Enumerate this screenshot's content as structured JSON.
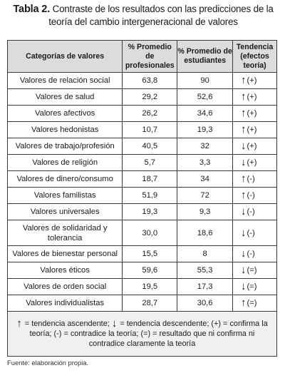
{
  "caption": {
    "label": "Tabla 2.",
    "text": "Contraste de los resultados con las predicciones de la teoría del cambio intergeneracional de valores"
  },
  "table": {
    "headers": [
      "Categorías de valores",
      "% Promedio de profesionales",
      "% Promedio de estudiantes",
      "Tendencia (efectos teoría)"
    ],
    "rows": [
      {
        "category": "Valores de relación social",
        "prof": "63,8",
        "est": "90",
        "arrow": "↑",
        "effect": "(+)"
      },
      {
        "category": "Valores de salud",
        "prof": "29,2",
        "est": "52,6",
        "arrow": "↑",
        "effect": "(+)"
      },
      {
        "category": "Valores afectivos",
        "prof": "26,2",
        "est": "34,6",
        "arrow": "↑",
        "effect": "(+)"
      },
      {
        "category": "Valores hedonistas",
        "prof": "10,7",
        "est": "19,3",
        "arrow": "↑",
        "effect": "(+)"
      },
      {
        "category": "Valores de trabajo/profesión",
        "prof": "40,5",
        "est": "32",
        "arrow": "↓",
        "effect": "(+)"
      },
      {
        "category": "Valores de religión",
        "prof": "5,7",
        "est": "3,3",
        "arrow": "↓",
        "effect": "(+)"
      },
      {
        "category": "Valores de dinero/consumo",
        "prof": "18,7",
        "est": "34",
        "arrow": "↑",
        "effect": "(-)"
      },
      {
        "category": "Valores familistas",
        "prof": "51,9",
        "est": "72",
        "arrow": "↑",
        "effect": "(-)"
      },
      {
        "category": "Valores universales",
        "prof": "19,3",
        "est": "9,3",
        "arrow": "↓",
        "effect": "(-)"
      },
      {
        "category": "Valores de solidaridad y tolerancia",
        "prof": "30,0",
        "est": "18,6",
        "arrow": "↓",
        "effect": "(-)"
      },
      {
        "category": "Valores de bienestar personal",
        "prof": "15,5",
        "est": "8",
        "arrow": "↓",
        "effect": "(-)"
      },
      {
        "category": "Valores éticos",
        "prof": "59,6",
        "est": "55,3",
        "arrow": "↓",
        "effect": "(=)"
      },
      {
        "category": "Valores de orden social",
        "prof": "19,5",
        "est": "17,3",
        "arrow": "↓",
        "effect": "(=)"
      },
      {
        "category": "Valores individualistas",
        "prof": "28,7",
        "est": "30,6",
        "arrow": "↑",
        "effect": "(=)"
      }
    ],
    "legend": {
      "up_arrow": "↑",
      "up_text": " = tendencia ascendente; ",
      "down_arrow": "↓",
      "down_text": " = tendencia descendente; (+) = confirma la teoría; (-) = contradice la teoría; (=) = resultado que ni confirma ni contradice claramente la teoría"
    }
  },
  "source": "Fuente: elaboración propia."
}
